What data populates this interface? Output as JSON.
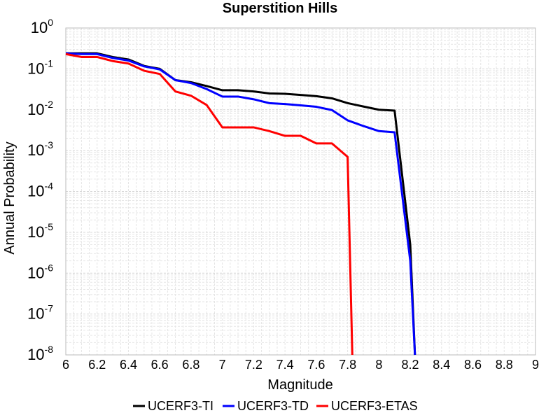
{
  "chart_data": {
    "type": "line",
    "title": "Superstition Hills",
    "xlabel": "Magnitude",
    "ylabel": "Annual Probability",
    "xlim": [
      6,
      9
    ],
    "ylim": [
      1e-08,
      1
    ],
    "yscale": "log",
    "grid": true,
    "legend_position": "bottom",
    "x_ticks": [
      "6",
      "6.2",
      "6.4",
      "6.6",
      "6.8",
      "7",
      "7.2",
      "7.4",
      "7.6",
      "7.8",
      "8",
      "8.2",
      "8.4",
      "8.6",
      "8.8",
      "9"
    ],
    "y_ticks": [
      {
        "base": "10",
        "exp": "0"
      },
      {
        "base": "10",
        "exp": "-1"
      },
      {
        "base": "10",
        "exp": "-2"
      },
      {
        "base": "10",
        "exp": "-3"
      },
      {
        "base": "10",
        "exp": "-4"
      },
      {
        "base": "10",
        "exp": "-5"
      },
      {
        "base": "10",
        "exp": "-6"
      },
      {
        "base": "10",
        "exp": "-7"
      },
      {
        "base": "10",
        "exp": "-8"
      }
    ],
    "series": [
      {
        "name": "UCERF3-TI",
        "color": "#000000",
        "x": [
          6.0,
          6.1,
          6.2,
          6.3,
          6.4,
          6.5,
          6.6,
          6.7,
          6.8,
          6.9,
          7.0,
          7.1,
          7.2,
          7.3,
          7.4,
          7.5,
          7.6,
          7.7,
          7.8,
          7.9,
          8.0,
          8.1,
          8.2,
          8.23
        ],
        "y": [
          0.24,
          0.24,
          0.24,
          0.195,
          0.17,
          0.118,
          0.1,
          0.053,
          0.047,
          0.038,
          0.03,
          0.03,
          0.028,
          0.025,
          0.0245,
          0.023,
          0.0215,
          0.019,
          0.0145,
          0.012,
          0.01,
          0.0095,
          5e-06,
          1e-08
        ]
      },
      {
        "name": "UCERF3-TD",
        "color": "#0000ff",
        "x": [
          6.0,
          6.1,
          6.2,
          6.3,
          6.4,
          6.5,
          6.6,
          6.7,
          6.8,
          6.9,
          7.0,
          7.1,
          7.2,
          7.3,
          7.4,
          7.5,
          7.6,
          7.7,
          7.8,
          7.9,
          8.0,
          8.1,
          8.2,
          8.23
        ],
        "y": [
          0.24,
          0.23,
          0.23,
          0.185,
          0.16,
          0.115,
          0.097,
          0.053,
          0.045,
          0.032,
          0.021,
          0.021,
          0.018,
          0.0145,
          0.0138,
          0.0128,
          0.0118,
          0.0098,
          0.0055,
          0.004,
          0.003,
          0.0028,
          2e-06,
          1e-08
        ]
      },
      {
        "name": "UCERF3-ETAS",
        "color": "#ff0000",
        "x": [
          6.0,
          6.1,
          6.2,
          6.3,
          6.4,
          6.5,
          6.6,
          6.7,
          6.8,
          6.9,
          7.0,
          7.1,
          7.2,
          7.3,
          7.4,
          7.5,
          7.6,
          7.7,
          7.8,
          7.83
        ],
        "y": [
          0.23,
          0.195,
          0.195,
          0.155,
          0.135,
          0.09,
          0.075,
          0.028,
          0.022,
          0.013,
          0.0037,
          0.0037,
          0.0037,
          0.003,
          0.0023,
          0.0023,
          0.0015,
          0.0015,
          0.0007,
          1e-08
        ]
      }
    ]
  }
}
